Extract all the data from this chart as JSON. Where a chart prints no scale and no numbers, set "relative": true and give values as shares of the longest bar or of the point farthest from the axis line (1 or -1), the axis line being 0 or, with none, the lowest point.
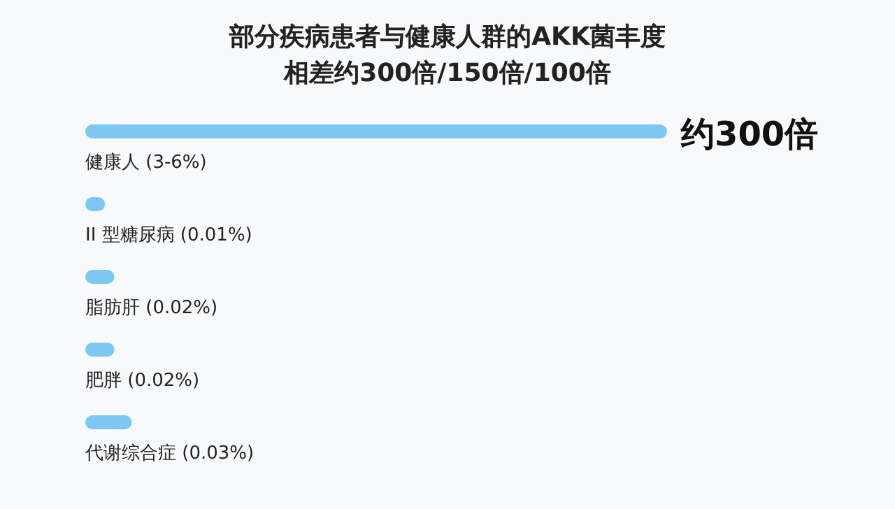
{
  "chart_data": {
    "type": "bar",
    "orientation": "horizontal",
    "relative": true,
    "title": "部分疾病患者与健康人群的AKK菌丰度",
    "subtitle": "相差约300倍/150倍/100倍",
    "categories": [
      "健康人 (3-6%)",
      "II 型糖尿病 (0.01%)",
      "脂肪肝 (0.02%)",
      "肥胖 (0.02%)",
      "代谢综合症 (0.03%)"
    ],
    "values": [
      1,
      0.034,
      0.05,
      0.05,
      0.08
    ],
    "color": "#7cc8f2",
    "annotations": [
      "约300倍"
    ]
  }
}
